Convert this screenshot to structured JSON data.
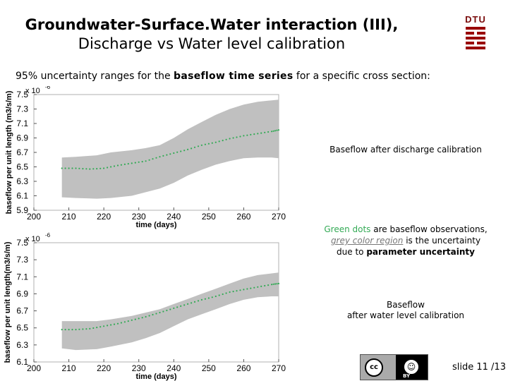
{
  "title": {
    "line1": "Groundwater-Surface.Water interaction (III),",
    "line2": "Discharge vs Water level calibration"
  },
  "logo": {
    "text": "DTU"
  },
  "subtitle": {
    "prefix": "95% uncertainty ranges  for the",
    "emphasis": "baseflow time series",
    "suffix": "for a specific cross section:"
  },
  "notes": {
    "top_label": "Baseflow after discharge calibration",
    "legend_green": "Green dots",
    "legend_part2": "are baseflow observations,",
    "legend_grey": "grey color region",
    "legend_part3": "is the uncertainty",
    "legend_part4": "due to",
    "legend_bold": "parameter uncertainty",
    "bottom_label_line1": "Baseflow",
    "bottom_label_line2": "after water level calibration"
  },
  "footer": {
    "slide": "slide 11 /13"
  },
  "license": {
    "cc": "cc",
    "by": "BY"
  },
  "colors": {
    "band": "#c0c0c0",
    "dots": "#33aa55",
    "accent": "#990000"
  },
  "chart_data": [
    {
      "type": "area",
      "title": "",
      "xlabel": "time (days)",
      "ylabel": "baseflow per unit length (m3/s/m)",
      "exponent_label": "x 10",
      "exponent_sup": "-6",
      "xlim": [
        200,
        270
      ],
      "ylim": [
        5.9,
        7.5
      ],
      "x_ticks": [
        210,
        220,
        230,
        240,
        250,
        260,
        270
      ],
      "y_ticks": [
        5.9,
        6.1,
        6.3,
        6.5,
        6.7,
        6.9,
        7.1,
        7.3,
        7.5
      ],
      "series": [
        {
          "name": "upper 95%",
          "x": [
            208,
            212,
            218,
            222,
            228,
            232,
            236,
            240,
            244,
            248,
            252,
            256,
            260,
            264,
            268,
            270
          ],
          "y": [
            6.63,
            6.64,
            6.66,
            6.7,
            6.73,
            6.76,
            6.8,
            6.9,
            7.02,
            7.12,
            7.22,
            7.3,
            7.36,
            7.4,
            7.42,
            7.43
          ]
        },
        {
          "name": "lower 95%",
          "x": [
            208,
            212,
            218,
            222,
            228,
            232,
            236,
            240,
            244,
            248,
            252,
            256,
            260,
            264,
            268,
            270
          ],
          "y": [
            6.08,
            6.07,
            6.06,
            6.07,
            6.1,
            6.15,
            6.2,
            6.28,
            6.38,
            6.46,
            6.53,
            6.58,
            6.62,
            6.63,
            6.63,
            6.62
          ]
        },
        {
          "name": "observations",
          "x": [
            208,
            212,
            216,
            220,
            224,
            228,
            232,
            236,
            240,
            244,
            248,
            252,
            256,
            260,
            264,
            268,
            270
          ],
          "y": [
            6.48,
            6.48,
            6.47,
            6.48,
            6.52,
            6.55,
            6.58,
            6.64,
            6.69,
            6.74,
            6.8,
            6.84,
            6.89,
            6.93,
            6.96,
            6.99,
            7.01
          ]
        }
      ]
    },
    {
      "type": "area",
      "title": "",
      "xlabel": "time (days)",
      "ylabel": "baseflow per unit length(m3/s/m)",
      "exponent_label": "x 10",
      "exponent_sup": "-6",
      "xlim": [
        200,
        270
      ],
      "ylim": [
        6.1,
        7.5
      ],
      "x_ticks": [
        210,
        220,
        230,
        240,
        250,
        260,
        270
      ],
      "y_ticks": [
        6.1,
        6.3,
        6.5,
        6.7,
        6.9,
        7.1,
        7.3,
        7.5
      ],
      "series": [
        {
          "name": "upper 95%",
          "x": [
            208,
            212,
            218,
            222,
            228,
            232,
            236,
            240,
            244,
            248,
            252,
            256,
            260,
            264,
            268,
            270
          ],
          "y": [
            6.58,
            6.58,
            6.58,
            6.6,
            6.64,
            6.68,
            6.72,
            6.78,
            6.84,
            6.9,
            6.96,
            7.02,
            7.08,
            7.12,
            7.14,
            7.15
          ]
        },
        {
          "name": "lower 95%",
          "x": [
            208,
            212,
            218,
            222,
            228,
            232,
            236,
            240,
            244,
            248,
            252,
            256,
            260,
            264,
            268,
            270
          ],
          "y": [
            6.26,
            6.24,
            6.25,
            6.28,
            6.33,
            6.38,
            6.44,
            6.52,
            6.6,
            6.66,
            6.72,
            6.78,
            6.83,
            6.86,
            6.87,
            6.87
          ]
        },
        {
          "name": "observations",
          "x": [
            208,
            212,
            216,
            220,
            224,
            228,
            232,
            236,
            240,
            244,
            248,
            252,
            256,
            260,
            264,
            268,
            270
          ],
          "y": [
            6.48,
            6.48,
            6.49,
            6.52,
            6.55,
            6.59,
            6.63,
            6.68,
            6.73,
            6.78,
            6.83,
            6.87,
            6.92,
            6.95,
            6.98,
            7.01,
            7.02
          ]
        }
      ]
    }
  ]
}
